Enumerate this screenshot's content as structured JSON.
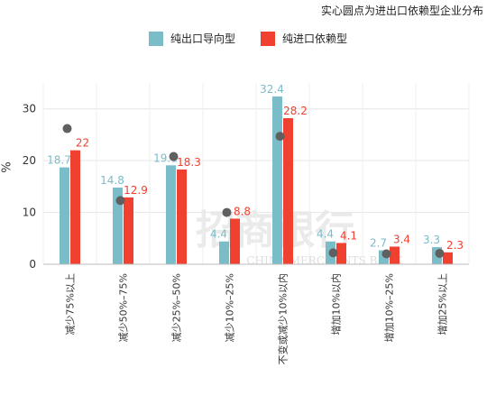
{
  "chart_data": {
    "type": "bar",
    "title": "",
    "note": "实心圆点为进出口依赖型企业分布",
    "ylabel": "%",
    "xlabel": "",
    "ylim": [
      0,
      35
    ],
    "yticks": [
      0,
      10,
      20,
      30
    ],
    "grid": true,
    "legend_position": "top",
    "categories": [
      "减少75%以上",
      "减少50%–75%",
      "减少25%–50%",
      "减少10%–25%",
      "不变或减少10%以内",
      "增加10%以内",
      "增加10%–25%",
      "增加25%以上"
    ],
    "series": [
      {
        "name": "纯出口导向型",
        "color": "#7bbcc9",
        "values": [
          18.7,
          14.8,
          19.1,
          4.4,
          32.4,
          4.4,
          2.7,
          3.3
        ],
        "labels": [
          "18.7",
          "14.8",
          "19.1",
          "4.4",
          "32.4",
          "4.4",
          "2.7",
          "3.3"
        ]
      },
      {
        "name": "纯进口依赖型",
        "color": "#f04030",
        "values": [
          22,
          12.9,
          18.3,
          8.8,
          28.2,
          4.1,
          3.4,
          2.3
        ],
        "labels": [
          "22",
          "12.9",
          "18.3",
          "8.8",
          "28.2",
          "4.1",
          "3.4",
          "2.3"
        ]
      }
    ],
    "dots": {
      "color": "#606060",
      "values": [
        26.2,
        12.3,
        20.8,
        10.0,
        24.7,
        2.2,
        2.0,
        2.1
      ]
    },
    "watermark": "招商银行 CHINA MERCHANTS BANK"
  }
}
